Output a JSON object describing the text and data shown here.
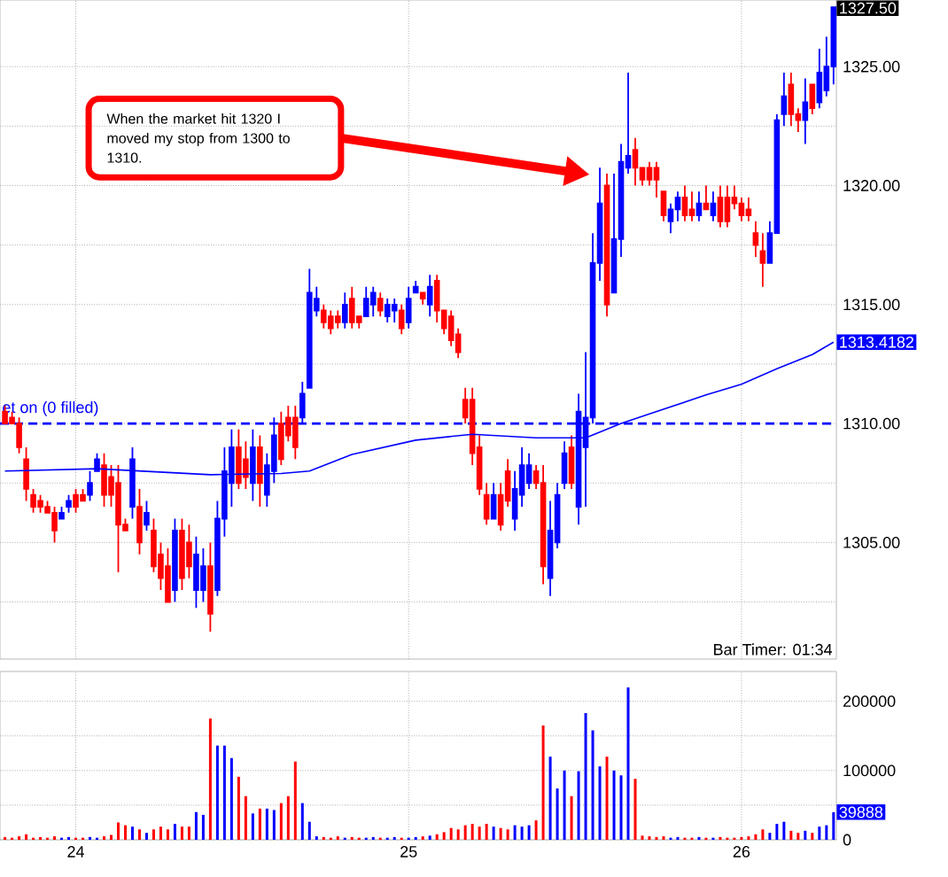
{
  "chart_data": [
    {
      "type": "candlestick",
      "categories": [
        null,
        null,
        null,
        null,
        null,
        null,
        null,
        null,
        null,
        null,
        "24",
        null,
        null,
        null,
        null,
        null,
        null,
        null,
        null,
        null,
        null,
        null,
        null,
        null,
        null,
        null,
        null,
        null,
        null,
        null,
        null,
        null,
        null,
        null,
        null,
        null,
        null,
        null,
        null,
        null,
        null,
        null,
        null,
        null,
        null,
        null,
        null,
        null,
        null,
        null,
        null,
        null,
        null,
        null,
        null,
        null,
        null,
        "25",
        null,
        null,
        null,
        null,
        null,
        null,
        null,
        null,
        null,
        null,
        null,
        null,
        null,
        null,
        null,
        null,
        null,
        null,
        null,
        null,
        null,
        null,
        null,
        null,
        null,
        null,
        null,
        null,
        null,
        null,
        null,
        null,
        null,
        null,
        null,
        null,
        null,
        null,
        null,
        null,
        null,
        null,
        null,
        null,
        null,
        null,
        "26",
        null,
        null,
        null,
        null,
        null,
        null,
        null,
        null,
        null,
        null,
        null,
        null,
        null
      ],
      "ohlc": [
        [
          1310.5,
          1310.75,
          1310,
          1310
        ],
        [
          1310.25,
          1310.5,
          1310,
          1310
        ],
        [
          1310,
          1310.25,
          1308.75,
          1309
        ],
        [
          1308.5,
          1309,
          1306.75,
          1307.25
        ],
        [
          1307,
          1307.25,
          1306.25,
          1306.5
        ],
        [
          1306.75,
          1307,
          1306.25,
          1306.5
        ],
        [
          1306.5,
          1306.75,
          1306.25,
          1306.25
        ],
        [
          1306.25,
          1306.5,
          1305,
          1305.5
        ],
        [
          1306,
          1306.5,
          1306,
          1306.25
        ],
        [
          1306.5,
          1307,
          1306.25,
          1306.75
        ],
        [
          1307,
          1307.25,
          1306.25,
          1306.5
        ],
        [
          1307,
          1307.25,
          1306.75,
          1306.75
        ],
        [
          1307,
          1308,
          1306.75,
          1307.5
        ],
        [
          1308,
          1308.75,
          1308,
          1308.5
        ],
        [
          1308.25,
          1308.75,
          1306.5,
          1307
        ],
        [
          1307.75,
          1308.25,
          1306.5,
          1307
        ],
        [
          1307.5,
          1308.25,
          1303.75,
          1305.75
        ],
        [
          1305.75,
          1306,
          1305.5,
          1305.5
        ],
        [
          1306.5,
          1309,
          1306,
          1308.5
        ],
        [
          1306.5,
          1307.25,
          1304.5,
          1305
        ],
        [
          1305.75,
          1306.75,
          1305.5,
          1306.25
        ],
        [
          1305.5,
          1306,
          1303.75,
          1304
        ],
        [
          1304.5,
          1305,
          1303,
          1303.5
        ],
        [
          1304,
          1304.75,
          1302.5,
          1302.5
        ],
        [
          1303,
          1306,
          1302.5,
          1305.5
        ],
        [
          1305.5,
          1306,
          1303,
          1303.5
        ],
        [
          1305,
          1305.75,
          1303.5,
          1304
        ],
        [
          1303,
          1305.25,
          1302.25,
          1304.5
        ],
        [
          1303,
          1304.75,
          1302.5,
          1304
        ],
        [
          1304,
          1305,
          1301.25,
          1302
        ],
        [
          1303,
          1306.75,
          1302.75,
          1306
        ],
        [
          1306,
          1309,
          1305.25,
          1308
        ],
        [
          1307.5,
          1309.75,
          1306.5,
          1309
        ],
        [
          1309,
          1309.75,
          1307.25,
          1307.5
        ],
        [
          1308.5,
          1309.25,
          1307.25,
          1307.75
        ],
        [
          1307.5,
          1309.75,
          1306.75,
          1309
        ],
        [
          1309,
          1309.5,
          1306.5,
          1307.5
        ],
        [
          1307,
          1308.75,
          1306.5,
          1308.25
        ],
        [
          1308,
          1310.25,
          1307.5,
          1309.5
        ],
        [
          1310,
          1310.5,
          1308.25,
          1308.5
        ],
        [
          1310.25,
          1310.75,
          1309.25,
          1309.5
        ],
        [
          1310.25,
          1310.75,
          1308.5,
          1309
        ],
        [
          1310.25,
          1311.75,
          1310,
          1311.25
        ],
        [
          1311.5,
          1316.5,
          1311.5,
          1315.5
        ],
        [
          1314.75,
          1315.75,
          1314.5,
          1315.25
        ],
        [
          1314.75,
          1315,
          1314,
          1314.25
        ],
        [
          1314.5,
          1314.75,
          1313.75,
          1314
        ],
        [
          1314.5,
          1314.75,
          1314,
          1314.25
        ],
        [
          1314.25,
          1315.5,
          1314,
          1315
        ],
        [
          1315.25,
          1315.75,
          1314,
          1314.25
        ],
        [
          1314.5,
          1314.5,
          1314,
          1314.25
        ],
        [
          1314.5,
          1315.75,
          1314.5,
          1315.25
        ],
        [
          1315,
          1315.75,
          1314.5,
          1315.5
        ],
        [
          1315.25,
          1315.5,
          1314.5,
          1314.75
        ],
        [
          1314.5,
          1315.25,
          1314.25,
          1315
        ],
        [
          1314.75,
          1315.25,
          1314.25,
          1315
        ],
        [
          1314.75,
          1315,
          1313.75,
          1314
        ],
        [
          1314.25,
          1315.75,
          1314,
          1315.25
        ],
        [
          1315.5,
          1316,
          1315.5,
          1315.75
        ],
        [
          1315.5,
          1315.5,
          1315,
          1315.25
        ],
        [
          1315,
          1316.25,
          1314.5,
          1315.75
        ],
        [
          1316,
          1316.25,
          1314.25,
          1314.75
        ],
        [
          1314.75,
          1314.75,
          1313.75,
          1314
        ],
        [
          1314.5,
          1314.75,
          1313.25,
          1313.5
        ],
        [
          1313.75,
          1314,
          1312.75,
          1313
        ],
        [
          1311,
          1311.5,
          1310,
          1310.25
        ],
        [
          1311,
          1311.5,
          1308.25,
          1308.75
        ],
        [
          1309,
          1309.5,
          1307,
          1307.25
        ],
        [
          1307,
          1307.5,
          1305.75,
          1306
        ],
        [
          1306,
          1307.5,
          1306,
          1307
        ],
        [
          1307,
          1307.5,
          1305.5,
          1305.75
        ],
        [
          1308,
          1308.5,
          1306.5,
          1306.75
        ],
        [
          1306,
          1308,
          1305.5,
          1307.25
        ],
        [
          1307,
          1309,
          1306.5,
          1308.25
        ],
        [
          1307.5,
          1308.75,
          1307.25,
          1308.25
        ],
        [
          1308,
          1308.25,
          1307.25,
          1307.5
        ],
        [
          1307.5,
          1308.25,
          1303.25,
          1304
        ],
        [
          1303.5,
          1306.75,
          1302.75,
          1305.5
        ],
        [
          1305,
          1307.5,
          1304.75,
          1307
        ],
        [
          1307.5,
          1309.25,
          1307.25,
          1308.75
        ],
        [
          1309,
          1309.5,
          1307.25,
          1307.5
        ],
        [
          1306.5,
          1311.25,
          1305.75,
          1310.5
        ],
        [
          1309,
          1313,
          1306.5,
          1310.25
        ],
        [
          1310.25,
          1318,
          1310,
          1316.75
        ],
        [
          1316.75,
          1320.75,
          1316,
          1319.25
        ],
        [
          1320,
          1320.5,
          1314.5,
          1315
        ],
        [
          1315.5,
          1320.5,
          1315.5,
          1317.75
        ],
        [
          1317.75,
          1321.75,
          1317,
          1321
        ],
        [
          1320.75,
          1324.75,
          1320.5,
          1321.25
        ],
        [
          1321.5,
          1322,
          1320,
          1320.75
        ],
        [
          1320.75,
          1320.75,
          1320,
          1320.25
        ],
        [
          1320.75,
          1321,
          1320,
          1320.25
        ],
        [
          1320.75,
          1321,
          1319.5,
          1320.25
        ],
        [
          1319.75,
          1319.75,
          1318.5,
          1318.75
        ],
        [
          1318.5,
          1319.25,
          1318,
          1319
        ],
        [
          1319,
          1319.75,
          1318.5,
          1319.5
        ],
        [
          1319.5,
          1320,
          1318.5,
          1318.75
        ],
        [
          1319,
          1319.75,
          1318.5,
          1318.75
        ],
        [
          1318.75,
          1319.75,
          1318.5,
          1319.25
        ],
        [
          1319.25,
          1320,
          1319,
          1319
        ],
        [
          1318.75,
          1319.75,
          1318.5,
          1319.25
        ],
        [
          1319.5,
          1320,
          1318.25,
          1318.5
        ],
        [
          1319.5,
          1320,
          1318.25,
          1318.5
        ],
        [
          1319.5,
          1320,
          1319,
          1319.25
        ],
        [
          1319.25,
          1319.5,
          1318.5,
          1318.75
        ],
        [
          1319,
          1319.5,
          1318.5,
          1318.75
        ],
        [
          1318,
          1318.5,
          1317,
          1317.5
        ],
        [
          1317.25,
          1318,
          1315.75,
          1316.75
        ],
        [
          1316.75,
          1318.5,
          1316.75,
          1318
        ],
        [
          1318,
          1323,
          1318,
          1322.75
        ],
        [
          1323,
          1324.75,
          1322.5,
          1323.75
        ],
        [
          1324.25,
          1324.75,
          1322.5,
          1323
        ],
        [
          1323,
          1323.25,
          1322.25,
          1322.75
        ],
        [
          1322.75,
          1324.5,
          1321.75,
          1323.5
        ],
        [
          1324.25,
          1324.25,
          1323,
          1323.25
        ],
        [
          1323.5,
          1325.75,
          1323.25,
          1324.75
        ],
        [
          1324,
          1326.25,
          1323.75,
          1325
        ],
        [
          1325,
          1327.5,
          1324.25,
          1327.5
        ]
      ],
      "colors": [
        "#ff0000",
        "#ff0000",
        "#ff0000",
        "#ff0000",
        "#ff0000",
        "#ff0000",
        "#ff0000",
        "#ff0000",
        "#0000ff",
        "#0000ff",
        "#ff0000",
        "#ff0000",
        "#0000ff",
        "#0000ff",
        "#ff0000",
        "#ff0000",
        "#ff0000",
        "#ff0000",
        "#0000ff",
        "#ff0000",
        "#0000ff",
        "#ff0000",
        "#ff0000",
        "#ff0000",
        "#0000ff",
        "#ff0000",
        "#ff0000",
        "#0000ff",
        "#0000ff",
        "#ff0000",
        "#0000ff",
        "#0000ff",
        "#0000ff",
        "#ff0000",
        "#ff0000",
        "#0000ff",
        "#ff0000",
        "#0000ff",
        "#0000ff",
        "#ff0000",
        "#ff0000",
        "#ff0000",
        "#0000ff",
        "#0000ff",
        "#0000ff",
        "#ff0000",
        "#ff0000",
        "#ff0000",
        "#0000ff",
        "#ff0000",
        "#ff0000",
        "#0000ff",
        "#0000ff",
        "#ff0000",
        "#0000ff",
        "#0000ff",
        "#ff0000",
        "#0000ff",
        "#0000ff",
        "#ff0000",
        "#0000ff",
        "#ff0000",
        "#ff0000",
        "#ff0000",
        "#ff0000",
        "#ff0000",
        "#ff0000",
        "#ff0000",
        "#ff0000",
        "#0000ff",
        "#ff0000",
        "#ff0000",
        "#0000ff",
        "#0000ff",
        "#0000ff",
        "#ff0000",
        "#ff0000",
        "#0000ff",
        "#0000ff",
        "#0000ff",
        "#ff0000",
        "#0000ff",
        "#0000ff",
        "#0000ff",
        "#0000ff",
        "#ff0000",
        "#0000ff",
        "#0000ff",
        "#0000ff",
        "#ff0000",
        "#ff0000",
        "#ff0000",
        "#ff0000",
        "#ff0000",
        "#0000ff",
        "#0000ff",
        "#ff0000",
        "#ff0000",
        "#0000ff",
        "#ff0000",
        "#0000ff",
        "#ff0000",
        "#ff0000",
        "#ff0000",
        "#ff0000",
        "#ff0000",
        "#ff0000",
        "#ff0000",
        "#0000ff",
        "#0000ff",
        "#0000ff",
        "#ff0000",
        "#ff0000",
        "#0000ff",
        "#ff0000",
        "#0000ff",
        "#0000ff",
        "#0000ff"
      ],
      "series": [
        {
          "type": "line",
          "color": "#0000ff",
          "values": [
            1308.0,
            null,
            null,
            null,
            null,
            null,
            null,
            null,
            null,
            null,
            null,
            null,
            null,
            1308.1,
            null,
            null,
            null,
            null,
            null,
            null,
            null,
            null,
            null,
            null,
            null,
            null,
            null,
            null,
            null,
            1307.85,
            null,
            null,
            null,
            null,
            null,
            null,
            null,
            null,
            null,
            1307.9,
            null,
            null,
            null,
            1308.0,
            null,
            null,
            null,
            null,
            null,
            1308.7,
            null,
            null,
            null,
            null,
            null,
            null,
            null,
            null,
            1309.3,
            null,
            null,
            null,
            null,
            null,
            null,
            null,
            1309.55,
            null,
            null,
            null,
            null,
            null,
            null,
            null,
            null,
            1309.4,
            null,
            null,
            null,
            null,
            null,
            null,
            1309.4,
            null,
            null,
            null,
            null,
            1310.0,
            null,
            null,
            null,
            1310.4,
            null,
            null,
            null,
            null,
            null,
            null,
            null,
            1311.2,
            null,
            null,
            null,
            null,
            1311.65,
            null,
            null,
            null,
            null,
            1312.3,
            null,
            null,
            null,
            null,
            1312.9,
            null,
            null,
            1313.4182
          ],
          "value_labels": [
            null,
            null,
            null,
            null,
            null,
            null,
            null,
            null,
            null,
            null,
            null,
            null,
            null,
            null,
            null,
            null,
            null,
            null,
            null,
            null,
            null,
            null,
            null,
            null,
            null,
            null,
            null,
            null,
            null,
            null,
            null,
            null,
            null,
            null,
            null,
            null,
            null,
            null,
            null,
            null,
            null,
            null,
            null,
            null,
            null,
            null,
            null,
            null,
            null,
            null,
            null,
            null,
            null,
            null,
            null,
            null,
            null,
            null,
            null,
            null,
            null,
            null,
            null,
            null,
            null,
            null,
            null,
            null,
            null,
            null,
            null,
            null,
            null,
            null,
            null,
            null,
            null,
            null,
            null,
            null,
            null,
            null,
            null,
            null,
            null,
            null,
            null,
            null,
            null,
            null,
            null,
            null,
            null,
            null,
            null,
            null,
            null,
            null,
            null,
            null,
            null,
            null,
            null,
            null,
            null,
            null,
            null,
            null,
            null,
            null,
            null,
            null,
            null,
            null,
            null,
            null,
            null,
            "1313.4182"
          ]
        }
      ],
      "ylim": [
        1300.1,
        1327.8
      ],
      "yticks": [
        {
          "value": 1302.5,
          "label": null
        },
        {
          "value": 1305,
          "label": "1305.00"
        },
        {
          "value": 1307.5,
          "label": null
        },
        {
          "value": 1310,
          "label": "1310.00"
        },
        {
          "value": 1312.5,
          "label": null
        },
        {
          "value": 1315,
          "label": "1315.00"
        },
        {
          "value": 1317.5,
          "label": null
        },
        {
          "value": 1320,
          "label": "1320.00"
        },
        {
          "value": 1322.5,
          "label": null
        },
        {
          "value": 1325,
          "label": "1325.00"
        }
      ],
      "grid": true,
      "tick_labels": "y",
      "ref_lines": [
        {
          "axis": "y",
          "value": 1310,
          "label": "et on (0 filled)",
          "color": "#0000ff",
          "line_style": "dashed"
        }
      ],
      "annotations": [
        "When the market hit 1320 I moved my stop from 1300 to 1310.",
        "Bar Timer: 01:34",
        "1327.50"
      ]
    },
    {
      "type": "bar",
      "categories": [
        null,
        null,
        null,
        null,
        null,
        null,
        null,
        null,
        null,
        null,
        "24",
        null,
        null,
        null,
        null,
        null,
        null,
        null,
        null,
        null,
        null,
        null,
        null,
        null,
        null,
        null,
        null,
        null,
        null,
        null,
        null,
        null,
        null,
        null,
        null,
        null,
        null,
        null,
        null,
        null,
        null,
        null,
        null,
        null,
        null,
        null,
        null,
        null,
        null,
        null,
        null,
        null,
        null,
        null,
        null,
        null,
        null,
        "25",
        null,
        null,
        null,
        null,
        null,
        null,
        null,
        null,
        null,
        null,
        null,
        null,
        null,
        null,
        null,
        null,
        null,
        null,
        null,
        null,
        null,
        null,
        null,
        null,
        null,
        null,
        null,
        null,
        null,
        null,
        null,
        null,
        null,
        null,
        null,
        null,
        null,
        null,
        null,
        null,
        null,
        null,
        null,
        null,
        null,
        null,
        "26",
        null,
        null,
        null,
        null,
        null,
        null,
        null,
        null,
        null,
        null,
        null,
        null,
        null
      ],
      "values": [
        4000,
        3000,
        5000,
        8000,
        3000,
        4000,
        3000,
        5000,
        3000,
        4000,
        3000,
        3000,
        4000,
        3000,
        5000,
        7000,
        25000,
        21000,
        19000,
        15000,
        10000,
        15000,
        19000,
        15000,
        23000,
        19000,
        19000,
        40000,
        36000,
        175000,
        136000,
        136000,
        118000,
        91000,
        63000,
        38000,
        45000,
        45000,
        43000,
        53000,
        63000,
        113000,
        53000,
        26000,
        5000,
        4000,
        3000,
        5000,
        3000,
        4000,
        3000,
        3000,
        4000,
        3000,
        3000,
        4000,
        3000,
        3000,
        4000,
        5000,
        6000,
        8000,
        11000,
        17000,
        15000,
        21000,
        23000,
        19000,
        23000,
        19000,
        17000,
        15000,
        21000,
        19000,
        21000,
        28000,
        165000,
        120000,
        74000,
        100000,
        63000,
        99000,
        183000,
        158000,
        106000,
        120000,
        100000,
        93000,
        220000,
        88000,
        6000,
        5000,
        4000,
        5000,
        3000,
        4000,
        3000,
        3000,
        4000,
        3000,
        3000,
        4000,
        3000,
        3000,
        4000,
        5000,
        8000,
        15000,
        10000,
        23000,
        26000,
        13000,
        10000,
        13000,
        10000,
        19000,
        21000,
        39888
      ],
      "colors": [
        "#ff0000",
        "#ff0000",
        "#ff0000",
        "#ff0000",
        "#ff0000",
        "#ff0000",
        "#ff0000",
        "#ff0000",
        "#0000ff",
        "#0000ff",
        "#ff0000",
        "#ff0000",
        "#0000ff",
        "#0000ff",
        "#ff0000",
        "#ff0000",
        "#ff0000",
        "#ff0000",
        "#0000ff",
        "#ff0000",
        "#0000ff",
        "#ff0000",
        "#ff0000",
        "#ff0000",
        "#0000ff",
        "#ff0000",
        "#ff0000",
        "#0000ff",
        "#0000ff",
        "#ff0000",
        "#0000ff",
        "#0000ff",
        "#0000ff",
        "#ff0000",
        "#ff0000",
        "#0000ff",
        "#ff0000",
        "#0000ff",
        "#0000ff",
        "#ff0000",
        "#ff0000",
        "#ff0000",
        "#0000ff",
        "#0000ff",
        "#0000ff",
        "#ff0000",
        "#ff0000",
        "#ff0000",
        "#0000ff",
        "#ff0000",
        "#ff0000",
        "#0000ff",
        "#0000ff",
        "#ff0000",
        "#0000ff",
        "#0000ff",
        "#ff0000",
        "#0000ff",
        "#0000ff",
        "#ff0000",
        "#0000ff",
        "#ff0000",
        "#ff0000",
        "#ff0000",
        "#ff0000",
        "#ff0000",
        "#ff0000",
        "#ff0000",
        "#ff0000",
        "#0000ff",
        "#ff0000",
        "#ff0000",
        "#0000ff",
        "#0000ff",
        "#0000ff",
        "#ff0000",
        "#ff0000",
        "#0000ff",
        "#0000ff",
        "#0000ff",
        "#ff0000",
        "#0000ff",
        "#0000ff",
        "#0000ff",
        "#0000ff",
        "#ff0000",
        "#0000ff",
        "#0000ff",
        "#0000ff",
        "#ff0000",
        "#ff0000",
        "#ff0000",
        "#ff0000",
        "#ff0000",
        "#0000ff",
        "#0000ff",
        "#ff0000",
        "#ff0000",
        "#0000ff",
        "#ff0000",
        "#0000ff",
        "#ff0000",
        "#ff0000",
        "#ff0000",
        "#ff0000",
        "#ff0000",
        "#ff0000",
        "#ff0000",
        "#0000ff",
        "#0000ff",
        "#0000ff",
        "#ff0000",
        "#ff0000",
        "#0000ff",
        "#ff0000",
        "#0000ff",
        "#0000ff",
        "#0000ff"
      ],
      "ylim": [
        0,
        243000
      ],
      "yticks": [
        0,
        {
          "value": 50000,
          "label": null
        },
        100000,
        {
          "value": 150000,
          "label": null
        },
        200000
      ],
      "grid": true,
      "annotations": [
        {
          "text": "39888",
          "y": 39888
        }
      ]
    }
  ]
}
